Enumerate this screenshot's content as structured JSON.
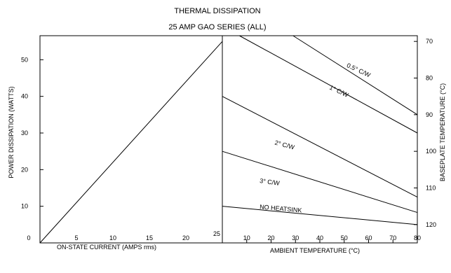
{
  "chart_data": {
    "type": "line",
    "title": "THERMAL DISSIPATION",
    "subtitle": "25 AMP GAO SERIES (ALL)",
    "left_panel": {
      "xlabel": "ON-STATE CURRENT (AMPS rms)",
      "ylabel": "POWER DISSIPATION (WATTS)",
      "xlim": [
        0,
        25
      ],
      "ylim": [
        0,
        60
      ],
      "x_ticks": [
        0,
        5,
        10,
        15,
        20,
        25
      ],
      "y_ticks": [
        10,
        20,
        30,
        40,
        50
      ],
      "series": [
        {
          "x": [
            0,
            25
          ],
          "y": [
            0,
            55
          ]
        }
      ]
    },
    "right_panel": {
      "xlabel": "AMBIENT TEMPERATURE (°C)",
      "ylabel": "BASEPLATE TEMPERATURE (°C)",
      "xlim": [
        0,
        80
      ],
      "ylim": [
        0,
        60
      ],
      "x_ticks": [
        10,
        20,
        30,
        40,
        50,
        60,
        70,
        80
      ],
      "y2_ticks": [
        {
          "label": "70",
          "power": 55
        },
        {
          "label": "80",
          "power": 45
        },
        {
          "label": "90",
          "power": 35
        },
        {
          "label": "100",
          "power": 25
        },
        {
          "label": "110",
          "power": 15
        },
        {
          "label": "120",
          "power": 5
        }
      ],
      "series": [
        {
          "name": "0.5° C/W",
          "x": [
            29,
            80
          ],
          "y": [
            60,
            35
          ]
        },
        {
          "name": "1° C/W",
          "x": [
            7,
            80
          ],
          "y": [
            60,
            30
          ]
        },
        {
          "name": "2° C/W",
          "x": [
            0,
            80
          ],
          "y": [
            40,
            12.5
          ]
        },
        {
          "name": "3° C/W",
          "x": [
            0,
            80
          ],
          "y": [
            25,
            8.3
          ]
        },
        {
          "name": "NO HEATSINK",
          "x": [
            0,
            80
          ],
          "y": [
            10,
            5
          ]
        }
      ]
    }
  }
}
